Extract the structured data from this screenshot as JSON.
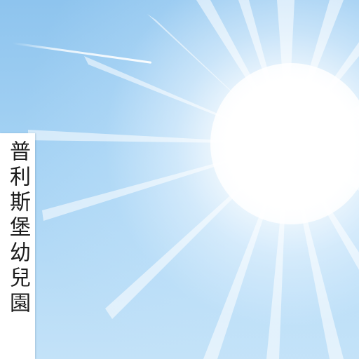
{
  "scene": {
    "description_colors": {
      "sky_top": "#8ec4ee",
      "sky_bottom": "#c3e2f8",
      "sun": "#ffffff",
      "sign_background": "#ffffff",
      "sign_text": "#1c1c1c"
    }
  },
  "sign": {
    "text": "普利斯堡幼兒園"
  }
}
